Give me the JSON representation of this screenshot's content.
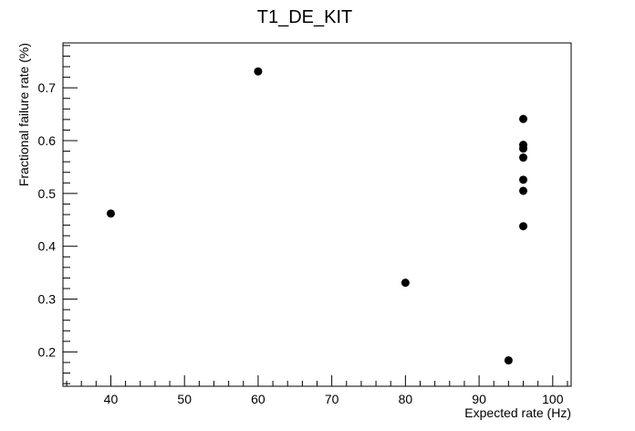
{
  "chart_data": {
    "type": "scatter",
    "title": "T1_DE_KIT",
    "xlabel": "Expected rate (Hz)",
    "ylabel": "Fractional failure rate (%)",
    "xlim": [
      33.5,
      102.5
    ],
    "ylim": [
      0.135,
      0.785
    ],
    "x_ticks": [
      40,
      50,
      60,
      70,
      80,
      90,
      100
    ],
    "x_tick_labels": [
      "40",
      "50",
      "60",
      "70",
      "80",
      "90",
      "100"
    ],
    "y_ticks": [
      0.2,
      0.3,
      0.4,
      0.5,
      0.6,
      0.7
    ],
    "y_tick_labels": [
      "0.2",
      "0.3",
      "0.4",
      "0.5",
      "0.6",
      "0.7"
    ],
    "grid": false,
    "legend": "none",
    "marker_color": "#000000",
    "series": [
      {
        "points": [
          {
            "x": 40,
            "y": 0.462
          },
          {
            "x": 60,
            "y": 0.731
          },
          {
            "x": 80,
            "y": 0.331
          },
          {
            "x": 94,
            "y": 0.184
          },
          {
            "x": 96,
            "y": 0.641
          },
          {
            "x": 96,
            "y": 0.592
          },
          {
            "x": 96,
            "y": 0.585
          },
          {
            "x": 96,
            "y": 0.568
          },
          {
            "x": 96,
            "y": 0.526
          },
          {
            "x": 96,
            "y": 0.505
          },
          {
            "x": 96,
            "y": 0.438
          }
        ]
      }
    ]
  }
}
